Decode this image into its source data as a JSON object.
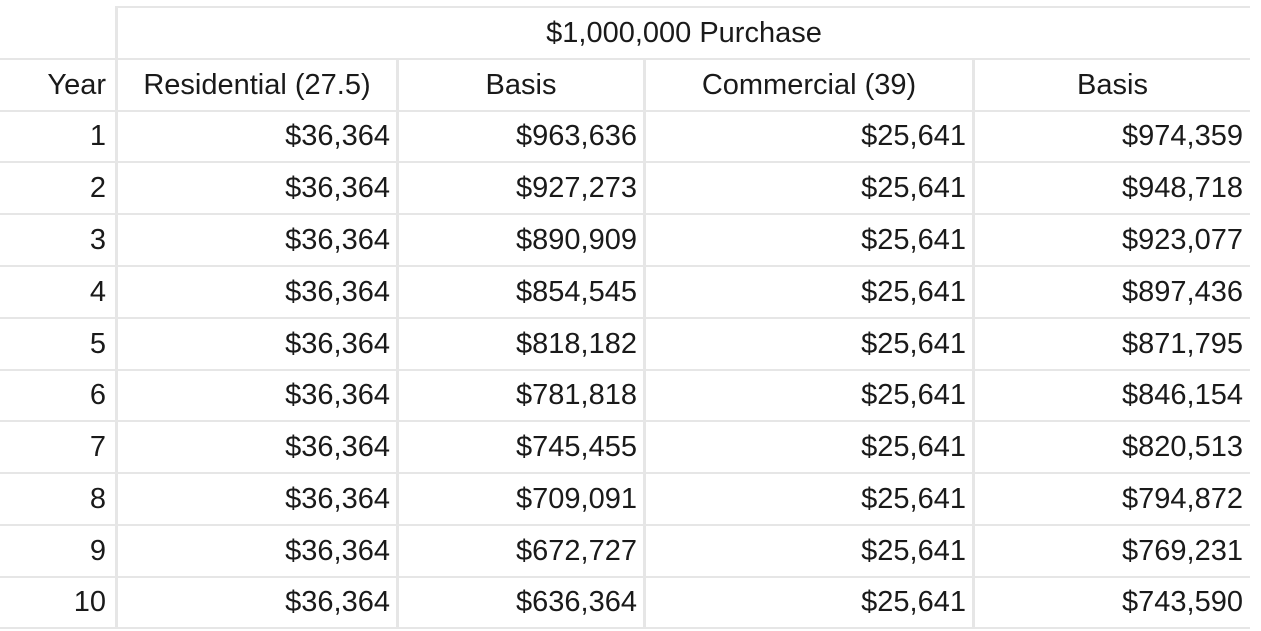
{
  "table": {
    "group_header": "$1,000,000 Purchase",
    "columns": [
      "Year",
      "Residential (27.5)",
      "Basis",
      "Commercial (39)",
      "Basis"
    ],
    "rows": [
      [
        "1",
        "$36,364",
        "$963,636",
        "$25,641",
        "$974,359"
      ],
      [
        "2",
        "$36,364",
        "$927,273",
        "$25,641",
        "$948,718"
      ],
      [
        "3",
        "$36,364",
        "$890,909",
        "$25,641",
        "$923,077"
      ],
      [
        "4",
        "$36,364",
        "$854,545",
        "$25,641",
        "$897,436"
      ],
      [
        "5",
        "$36,364",
        "$818,182",
        "$25,641",
        "$871,795"
      ],
      [
        "6",
        "$36,364",
        "$781,818",
        "$25,641",
        "$846,154"
      ],
      [
        "7",
        "$36,364",
        "$745,455",
        "$25,641",
        "$820,513"
      ],
      [
        "8",
        "$36,364",
        "$709,091",
        "$25,641",
        "$794,872"
      ],
      [
        "9",
        "$36,364",
        "$672,727",
        "$25,641",
        "$769,231"
      ],
      [
        "10",
        "$36,364",
        "$636,364",
        "$25,641",
        "$743,590"
      ]
    ]
  },
  "colors": {
    "gridline": "#e6e6e6",
    "text": "#1a1a1a",
    "background": "#ffffff"
  }
}
